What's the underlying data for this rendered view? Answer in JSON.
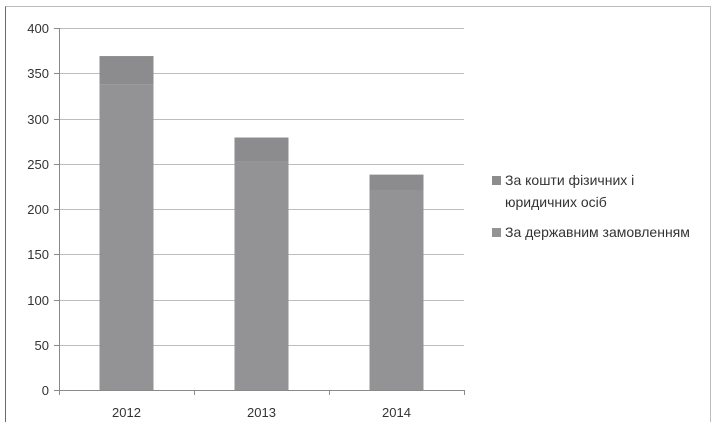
{
  "chart_data": {
    "type": "bar",
    "stacked": true,
    "categories": [
      "2012",
      "2013",
      "2014"
    ],
    "series": [
      {
        "name": "За державним замовленням",
        "values": [
          338,
          253,
          221
        ],
        "color": "#939395"
      },
      {
        "name": "За кошти фізичних і юридичних осіб",
        "values": [
          31,
          26,
          17
        ],
        "color": "#8c8c8e"
      }
    ],
    "y_ticks": [
      0,
      50,
      100,
      150,
      200,
      250,
      300,
      350,
      400
    ],
    "ylim": [
      0,
      400
    ],
    "grid": true,
    "legend_position": "right"
  },
  "legend": {
    "items": [
      {
        "lines": [
          "За кошти фізичних і",
          "юридичних осіб"
        ],
        "color": "#8c8c8e"
      },
      {
        "lines": [
          "За державним замовленням"
        ],
        "color": "#939395"
      }
    ]
  }
}
